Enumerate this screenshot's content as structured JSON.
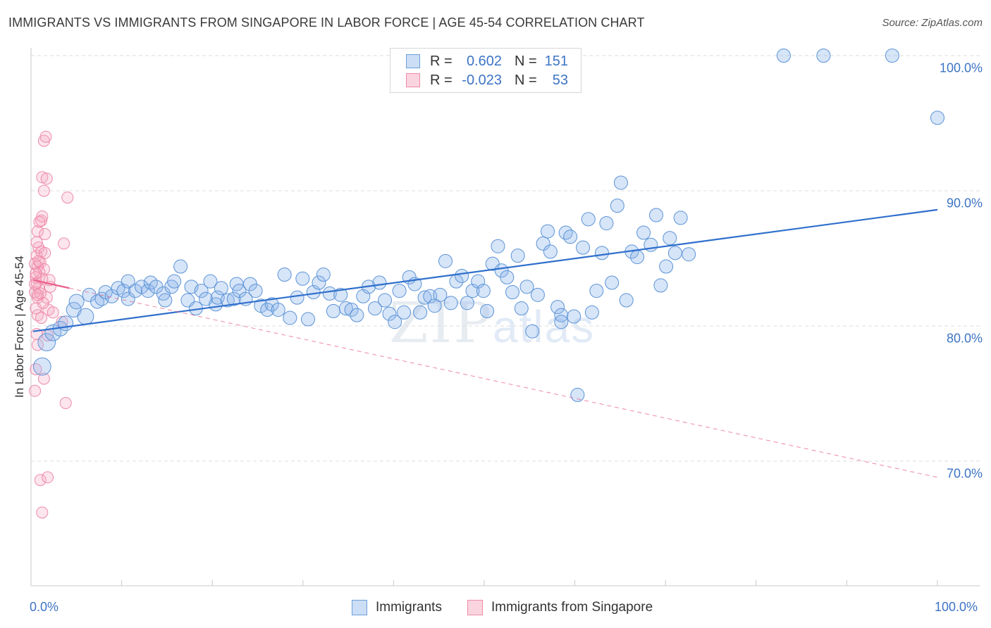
{
  "title": "IMMIGRANTS VS IMMIGRANTS FROM SINGAPORE IN LABOR FORCE | AGE 45-54 CORRELATION CHART",
  "source": "Source: ZipAtlas.com",
  "watermark": {
    "zip": "ZIP",
    "atlas": "atlas"
  },
  "legend_top": {
    "rows": [
      {
        "r_label": "R =",
        "r_value": "0.602",
        "n_label": "N =",
        "n_value": "151",
        "color": "#a9c8ee"
      },
      {
        "r_label": "R =",
        "r_value": "-0.023",
        "n_label": "N =",
        "n_value": "53",
        "color": "#f7b8ca"
      }
    ]
  },
  "legend_bottom": [
    {
      "label": "Immigrants",
      "color": "#a9c8ee"
    },
    {
      "label": "Immigrants from Singapore",
      "color": "#f7b8ca"
    }
  ],
  "colors": {
    "blue_fill": "rgba(140,180,235,0.35)",
    "blue_stroke": "#5b93d6",
    "blue_line": "#2f6fcc",
    "pink_fill": "rgba(245,170,195,0.3)",
    "pink_stroke": "#ee8aa8",
    "pink_line": "#e8608a",
    "grid": "#dedede",
    "tick_text": "#3d74c4"
  },
  "chart_data": {
    "type": "scatter",
    "xlabel": "",
    "ylabel": "In Labor Force | Age 45-54",
    "xlim": [
      0,
      100
    ],
    "ylim": [
      60,
      102
    ],
    "x_ticks": [
      "0.0%",
      "100.0%"
    ],
    "y_ticks": [
      {
        "value": 100,
        "label": "100.0%"
      },
      {
        "value": 90,
        "label": "90.0%"
      },
      {
        "value": 80,
        "label": "80.0%"
      },
      {
        "value": 70,
        "label": "70.0%"
      }
    ],
    "series": [
      {
        "name": "Immigrants",
        "trend": {
          "x": [
            0,
            100
          ],
          "y": [
            79.6,
            88.6
          ],
          "style": "solid"
        },
        "points": [
          [
            1.0,
            77.0,
            1.3
          ],
          [
            1.5,
            78.8,
            1.3
          ],
          [
            2.2,
            79.5,
            1.2
          ],
          [
            3.0,
            79.8,
            1.1
          ],
          [
            3.6,
            80.2,
            1.1
          ],
          [
            4.5,
            81.2,
            1.1
          ],
          [
            5.8,
            80.7,
            1.2
          ],
          [
            4.8,
            81.8,
            1.1
          ],
          [
            6.2,
            82.3,
            1.0
          ],
          [
            7.1,
            81.8,
            1.0
          ],
          [
            7.6,
            82.0,
            1.0
          ],
          [
            8.0,
            82.5,
            1.0
          ],
          [
            8.7,
            82.2,
            1.0
          ],
          [
            9.4,
            82.8,
            1.0
          ],
          [
            10.0,
            82.6,
            1.0
          ],
          [
            10.5,
            83.3,
            1.0
          ],
          [
            10.5,
            82.0,
            1.0
          ],
          [
            11.3,
            82.6,
            1.0
          ],
          [
            12.0,
            82.9,
            1.0
          ],
          [
            12.7,
            82.6,
            1.0
          ],
          [
            13.0,
            83.2,
            1.0
          ],
          [
            13.6,
            82.9,
            1.0
          ],
          [
            14.4,
            82.4,
            1.0
          ],
          [
            14.6,
            81.9,
            1.0
          ],
          [
            15.3,
            82.9,
            1.0
          ],
          [
            15.6,
            83.3,
            1.0
          ],
          [
            16.3,
            84.4,
            1.0
          ],
          [
            17.1,
            81.9,
            1.0
          ],
          [
            17.5,
            82.9,
            1.0
          ],
          [
            18.0,
            81.3,
            1.0
          ],
          [
            18.6,
            82.6,
            1.0
          ],
          [
            19.1,
            82.0,
            1.0
          ],
          [
            19.6,
            83.3,
            1.0
          ],
          [
            20.2,
            81.6,
            1.0
          ],
          [
            20.4,
            82.1,
            1.0
          ],
          [
            20.8,
            82.8,
            1.0
          ],
          [
            21.5,
            81.9,
            1.0
          ],
          [
            22.2,
            82.0,
            1.0
          ],
          [
            22.5,
            83.1,
            1.0
          ],
          [
            22.8,
            82.6,
            1.0
          ],
          [
            23.5,
            82.0,
            1.0
          ],
          [
            24.0,
            83.1,
            1.0
          ],
          [
            24.6,
            82.6,
            1.0
          ],
          [
            25.2,
            81.5,
            1.0
          ],
          [
            25.9,
            81.2,
            1.0
          ],
          [
            26.4,
            81.6,
            1.0
          ],
          [
            27.1,
            81.2,
            1.0
          ],
          [
            27.8,
            83.8,
            1.0
          ],
          [
            28.4,
            80.6,
            1.0
          ],
          [
            29.2,
            82.1,
            1.0
          ],
          [
            29.8,
            83.5,
            1.0
          ],
          [
            30.4,
            80.5,
            1.0
          ],
          [
            31.0,
            82.5,
            1.0
          ],
          [
            31.6,
            83.2,
            1.0
          ],
          [
            32.1,
            83.8,
            1.0
          ],
          [
            32.8,
            82.4,
            1.0
          ],
          [
            33.2,
            81.1,
            1.0
          ],
          [
            34.0,
            82.3,
            1.0
          ],
          [
            34.6,
            81.3,
            1.0
          ],
          [
            35.2,
            81.2,
            1.0
          ],
          [
            35.8,
            80.8,
            1.0
          ],
          [
            36.5,
            82.2,
            1.0
          ],
          [
            37.1,
            82.9,
            1.0
          ],
          [
            37.8,
            81.3,
            1.0
          ],
          [
            38.3,
            83.2,
            1.0
          ],
          [
            38.9,
            81.9,
            1.0
          ],
          [
            39.4,
            80.9,
            1.0
          ],
          [
            40.0,
            80.3,
            1.0
          ],
          [
            40.5,
            82.6,
            1.0
          ],
          [
            41.0,
            81.0,
            1.0
          ],
          [
            41.6,
            83.6,
            1.0
          ],
          [
            42.2,
            83.1,
            1.0
          ],
          [
            42.8,
            81.0,
            1.0
          ],
          [
            43.3,
            82.1,
            1.0
          ],
          [
            43.9,
            82.2,
            1.0
          ],
          [
            44.4,
            81.5,
            1.0
          ],
          [
            45.0,
            82.3,
            1.0
          ],
          [
            45.6,
            84.8,
            1.0
          ],
          [
            46.2,
            81.7,
            1.0
          ],
          [
            46.8,
            83.3,
            1.0
          ],
          [
            47.4,
            83.7,
            1.0
          ],
          [
            48.0,
            81.7,
            1.0
          ],
          [
            48.6,
            82.6,
            1.0
          ],
          [
            49.2,
            83.3,
            1.0
          ],
          [
            49.8,
            82.6,
            1.0
          ],
          [
            50.2,
            81.1,
            1.0
          ],
          [
            50.8,
            84.6,
            1.0
          ],
          [
            51.4,
            85.9,
            1.0
          ],
          [
            51.8,
            84.1,
            1.0
          ],
          [
            52.4,
            83.6,
            1.0
          ],
          [
            53.0,
            82.5,
            1.0
          ],
          [
            53.6,
            85.2,
            1.0
          ],
          [
            54.0,
            81.3,
            1.0
          ],
          [
            54.6,
            82.9,
            1.0
          ],
          [
            55.2,
            79.6,
            1.0
          ],
          [
            55.8,
            82.3,
            1.0
          ],
          [
            56.4,
            86.1,
            1.0
          ],
          [
            56.9,
            87.0,
            1.0
          ],
          [
            57.2,
            85.5,
            1.0
          ],
          [
            58.0,
            81.4,
            1.0
          ],
          [
            58.4,
            80.8,
            1.0
          ],
          [
            58.4,
            80.3,
            1.0
          ],
          [
            58.9,
            86.9,
            1.0
          ],
          [
            59.4,
            86.6,
            1.0
          ],
          [
            59.8,
            80.7,
            1.0
          ],
          [
            60.2,
            74.9,
            1.0
          ],
          [
            60.8,
            85.8,
            1.0
          ],
          [
            61.4,
            87.9,
            1.0
          ],
          [
            61.8,
            81.0,
            1.0
          ],
          [
            62.3,
            82.6,
            1.0
          ],
          [
            62.9,
            85.4,
            1.0
          ],
          [
            63.4,
            87.6,
            1.0
          ],
          [
            64.0,
            83.2,
            1.0
          ],
          [
            64.6,
            88.9,
            1.0
          ],
          [
            65.0,
            90.6,
            1.0
          ],
          [
            65.6,
            81.9,
            1.0
          ],
          [
            66.2,
            85.5,
            1.0
          ],
          [
            66.8,
            85.1,
            1.0
          ],
          [
            67.5,
            86.9,
            1.0
          ],
          [
            68.3,
            86.0,
            1.0
          ],
          [
            68.9,
            88.2,
            1.0
          ],
          [
            69.4,
            83.0,
            1.0
          ],
          [
            70.0,
            84.4,
            1.0
          ],
          [
            70.4,
            86.5,
            1.0
          ],
          [
            71.0,
            85.4,
            1.0
          ],
          [
            71.6,
            88.0,
            1.0
          ],
          [
            72.5,
            85.3,
            1.0
          ],
          [
            83.0,
            100.0,
            1.0
          ],
          [
            87.4,
            100.0,
            1.0
          ],
          [
            95.0,
            100.0,
            1.0
          ],
          [
            100.0,
            95.4,
            1.0
          ]
        ]
      },
      {
        "name": "Immigrants from Singapore",
        "trend": {
          "x": [
            0,
            4
          ],
          "y": [
            83.4,
            82.8
          ],
          "style": "solid",
          "extended": {
            "x": [
              4,
              100
            ],
            "y": [
              82.8,
              68.8
            ],
            "style": "dashed"
          }
        },
        "points": [
          [
            0.2,
            75.2
          ],
          [
            0.4,
            79.4
          ],
          [
            0.5,
            80.8
          ],
          [
            0.3,
            81.3
          ],
          [
            0.5,
            82.1
          ],
          [
            0.2,
            82.5
          ],
          [
            0.6,
            82.8
          ],
          [
            0.4,
            83.2
          ],
          [
            0.3,
            83.6
          ],
          [
            0.7,
            84.0
          ],
          [
            0.5,
            84.4
          ],
          [
            0.8,
            84.7
          ],
          [
            0.4,
            85.2
          ],
          [
            0.9,
            85.5
          ],
          [
            0.6,
            85.8
          ],
          [
            0.5,
            87.0
          ],
          [
            0.9,
            87.8
          ],
          [
            1.0,
            88.1
          ],
          [
            1.2,
            90.0
          ],
          [
            1.0,
            91.0
          ],
          [
            1.5,
            90.9
          ],
          [
            1.2,
            93.7
          ],
          [
            1.4,
            94.0
          ],
          [
            1.0,
            83.5
          ],
          [
            1.2,
            84.2
          ],
          [
            1.3,
            85.4
          ],
          [
            1.5,
            82.1
          ],
          [
            1.7,
            81.2
          ],
          [
            1.6,
            79.3
          ],
          [
            1.2,
            76.1
          ],
          [
            3.6,
            74.3
          ],
          [
            3.4,
            86.1
          ],
          [
            3.8,
            89.5
          ],
          [
            0.8,
            68.6
          ],
          [
            1.6,
            68.8
          ],
          [
            1.0,
            66.2
          ],
          [
            3.2,
            80.3
          ],
          [
            0.3,
            76.8
          ],
          [
            0.9,
            80.6
          ],
          [
            0.2,
            84.6
          ],
          [
            0.3,
            83.9
          ],
          [
            0.6,
            84.8
          ],
          [
            0.8,
            82.4
          ],
          [
            1.1,
            81.7
          ],
          [
            1.9,
            82.9
          ],
          [
            0.4,
            86.2
          ],
          [
            0.7,
            87.7
          ],
          [
            1.3,
            86.8
          ],
          [
            0.5,
            78.6
          ],
          [
            1.8,
            83.4
          ],
          [
            2.2,
            81.0
          ],
          [
            0.2,
            83.1
          ],
          [
            0.5,
            82.3
          ]
        ]
      }
    ],
    "stats": [
      {
        "series": "Immigrants",
        "R": 0.602,
        "N": 151
      },
      {
        "series": "Immigrants from Singapore",
        "R": -0.023,
        "N": 53
      }
    ]
  }
}
